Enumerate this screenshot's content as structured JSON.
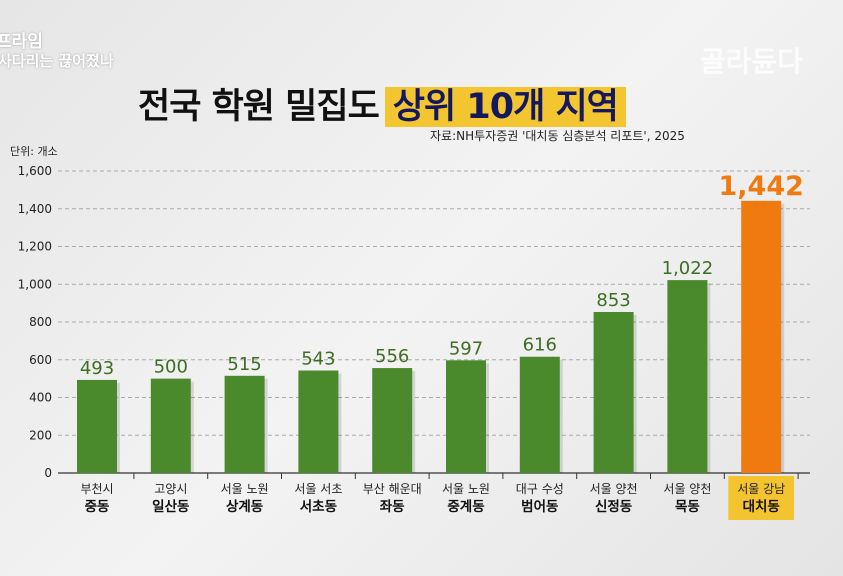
{
  "overlay": {
    "program": "프라임",
    "subtitle": "사다리는 끊어졌나",
    "watermark": "골라듄다"
  },
  "chart_data": {
    "type": "bar",
    "title": "전국 학원 밀집도",
    "title_highlight": "상위 10개 지역",
    "source": "자료:NH투자증권 '대치동 심층분석 리포트', 2025",
    "ylabel": "단위: 개소",
    "ylim": [
      0,
      1600
    ],
    "yticks": [
      "0",
      "200",
      "400",
      "600",
      "800",
      "1,000",
      "1,200",
      "1,400",
      "1,600"
    ],
    "grid": true,
    "categories": [
      {
        "line1": "부천시",
        "line2": "중동"
      },
      {
        "line1": "고양시",
        "line2": "일산동"
      },
      {
        "line1": "서울 노원",
        "line2": "상계동"
      },
      {
        "line1": "서울 서초",
        "line2": "서초동"
      },
      {
        "line1": "부산 해운대",
        "line2": "좌동"
      },
      {
        "line1": "서울 노원",
        "line2": "중계동"
      },
      {
        "line1": "대구 수성",
        "line2": "범어동"
      },
      {
        "line1": "서울 양천",
        "line2": "신정동"
      },
      {
        "line1": "서울 양천",
        "line2": "목동"
      },
      {
        "line1": "서울 강남",
        "line2": "대치동"
      }
    ],
    "values": [
      493,
      500,
      515,
      543,
      556,
      597,
      616,
      853,
      1022,
      1442
    ],
    "labels": [
      "493",
      "500",
      "515",
      "543",
      "556",
      "597",
      "616",
      "853",
      "1,022",
      "1,442"
    ],
    "highlight_index": 9,
    "colors": {
      "bar": "#4a8a2c",
      "highlight": "#f07a10",
      "label": "#3d6e22",
      "highlight_bg": "#f4c430"
    }
  }
}
